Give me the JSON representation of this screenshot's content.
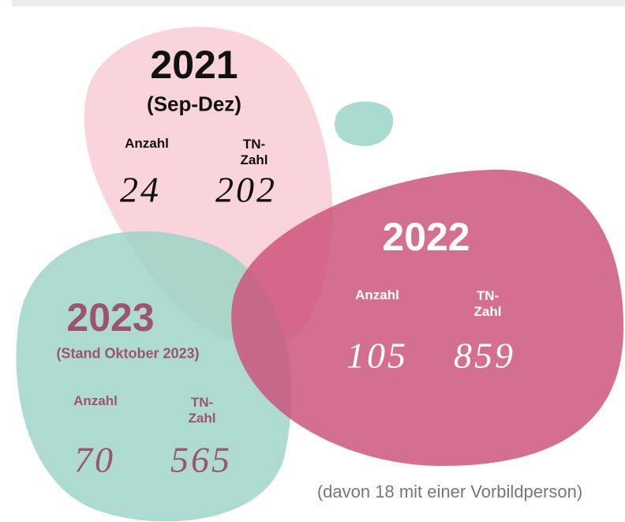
{
  "blobs": [
    {
      "year": "2021",
      "subtitle": "(Sep-Dez)",
      "count_label": "Anzahl",
      "participants_label": "TN-Zahl",
      "count": "24",
      "participants": "202"
    },
    {
      "year": "2022",
      "count_label": "Anzahl",
      "participants_label": "TN-Zahl",
      "count": "105",
      "participants": "859"
    },
    {
      "year": "2023",
      "subtitle": "(Stand Oktober 2023)",
      "count_label": "Anzahl",
      "participants_label": "TN-Zahl",
      "count": "70",
      "participants": "565"
    }
  ],
  "note": "(davon 18 mit einer Vorbildperson)"
}
